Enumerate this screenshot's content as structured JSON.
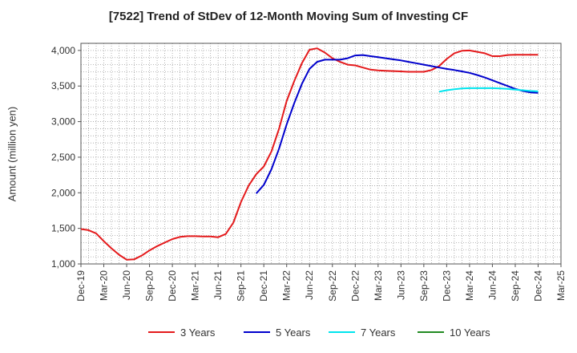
{
  "title": "[7522]  Trend of StDev of 12-Month Moving Sum of Investing CF",
  "chart_data": {
    "type": "line",
    "title": "[7522]  Trend of StDev of 12-Month Moving Sum of Investing CF",
    "ylabel": "Amount (million yen)",
    "xlabel": "",
    "ylim": [
      1000,
      4100
    ],
    "yticks": [
      1000,
      1500,
      2000,
      2500,
      3000,
      3500,
      4000
    ],
    "ytick_labels": [
      "1,000",
      "1,500",
      "2,000",
      "2,500",
      "3,000",
      "3,500",
      "4,000"
    ],
    "x_range": [
      "Dec-19",
      "Mar-25"
    ],
    "xtick_labels": [
      "Dec-19",
      "Mar-20",
      "Jun-20",
      "Sep-20",
      "Dec-20",
      "Mar-21",
      "Jun-21",
      "Sep-21",
      "Dec-21",
      "Mar-22",
      "Jun-22",
      "Sep-22",
      "Dec-22",
      "Mar-23",
      "Jun-23",
      "Sep-23",
      "Dec-23",
      "Mar-24",
      "Jun-24",
      "Sep-24",
      "Dec-24",
      "Mar-25"
    ],
    "grid": true,
    "legend_position": "bottom",
    "series": [
      {
        "name": "3 Years",
        "color": "#e41a1c",
        "points": [
          [
            "Dec-19",
            1490
          ],
          [
            "Jan-20",
            1475
          ],
          [
            "Feb-20",
            1430
          ],
          [
            "Mar-20",
            1320
          ],
          [
            "Apr-20",
            1220
          ],
          [
            "May-20",
            1130
          ],
          [
            "Jun-20",
            1060
          ],
          [
            "Jul-20",
            1065
          ],
          [
            "Aug-20",
            1120
          ],
          [
            "Sep-20",
            1190
          ],
          [
            "Oct-20",
            1250
          ],
          [
            "Nov-20",
            1300
          ],
          [
            "Dec-20",
            1350
          ],
          [
            "Jan-21",
            1380
          ],
          [
            "Feb-21",
            1390
          ],
          [
            "Mar-21",
            1390
          ],
          [
            "Apr-21",
            1385
          ],
          [
            "May-21",
            1385
          ],
          [
            "Jun-21",
            1375
          ],
          [
            "Jul-21",
            1420
          ],
          [
            "Aug-21",
            1580
          ],
          [
            "Sep-21",
            1870
          ],
          [
            "Oct-21",
            2100
          ],
          [
            "Nov-21",
            2260
          ],
          [
            "Dec-21",
            2370
          ],
          [
            "Jan-22",
            2580
          ],
          [
            "Feb-22",
            2900
          ],
          [
            "Mar-22",
            3290
          ],
          [
            "Apr-22",
            3570
          ],
          [
            "May-22",
            3820
          ],
          [
            "Jun-22",
            4010
          ],
          [
            "Jul-22",
            4030
          ],
          [
            "Aug-22",
            3970
          ],
          [
            "Sep-22",
            3890
          ],
          [
            "Oct-22",
            3840
          ],
          [
            "Nov-22",
            3800
          ],
          [
            "Dec-22",
            3790
          ],
          [
            "Jan-23",
            3760
          ],
          [
            "Feb-23",
            3730
          ],
          [
            "Mar-23",
            3720
          ],
          [
            "Apr-23",
            3715
          ],
          [
            "May-23",
            3710
          ],
          [
            "Jun-23",
            3705
          ],
          [
            "Jul-23",
            3700
          ],
          [
            "Aug-23",
            3700
          ],
          [
            "Sep-23",
            3700
          ],
          [
            "Oct-23",
            3725
          ],
          [
            "Nov-23",
            3780
          ],
          [
            "Dec-23",
            3880
          ],
          [
            "Jan-24",
            3960
          ],
          [
            "Feb-24",
            3995
          ],
          [
            "Mar-24",
            4000
          ],
          [
            "Apr-24",
            3980
          ],
          [
            "May-24",
            3960
          ],
          [
            "Jun-24",
            3920
          ],
          [
            "Jul-24",
            3920
          ],
          [
            "Aug-24",
            3935
          ],
          [
            "Sep-24",
            3940
          ],
          [
            "Oct-24",
            3940
          ],
          [
            "Nov-24",
            3940
          ],
          [
            "Dec-24",
            3940
          ]
        ]
      },
      {
        "name": "5 Years",
        "color": "#0000cc",
        "points": [
          [
            "Nov-21",
            1990
          ],
          [
            "Dec-21",
            2110
          ],
          [
            "Jan-22",
            2330
          ],
          [
            "Feb-22",
            2620
          ],
          [
            "Mar-22",
            2960
          ],
          [
            "Apr-22",
            3260
          ],
          [
            "May-22",
            3530
          ],
          [
            "Jun-22",
            3740
          ],
          [
            "Jul-22",
            3840
          ],
          [
            "Aug-22",
            3870
          ],
          [
            "Sep-22",
            3870
          ],
          [
            "Oct-22",
            3870
          ],
          [
            "Nov-22",
            3890
          ],
          [
            "Dec-22",
            3930
          ],
          [
            "Jan-23",
            3935
          ],
          [
            "Feb-23",
            3920
          ],
          [
            "Mar-23",
            3905
          ],
          [
            "Apr-23",
            3890
          ],
          [
            "May-23",
            3875
          ],
          [
            "Jun-23",
            3860
          ],
          [
            "Jul-23",
            3840
          ],
          [
            "Aug-23",
            3820
          ],
          [
            "Sep-23",
            3800
          ],
          [
            "Oct-23",
            3780
          ],
          [
            "Nov-23",
            3760
          ],
          [
            "Dec-23",
            3740
          ],
          [
            "Jan-24",
            3725
          ],
          [
            "Feb-24",
            3705
          ],
          [
            "Mar-24",
            3685
          ],
          [
            "Apr-24",
            3655
          ],
          [
            "May-24",
            3620
          ],
          [
            "Jun-24",
            3580
          ],
          [
            "Jul-24",
            3540
          ],
          [
            "Aug-24",
            3500
          ],
          [
            "Sep-24",
            3460
          ],
          [
            "Oct-24",
            3430
          ],
          [
            "Nov-24",
            3410
          ],
          [
            "Dec-24",
            3405
          ]
        ]
      },
      {
        "name": "7 Years",
        "color": "#00e5ee",
        "points": [
          [
            "Nov-23",
            3420
          ],
          [
            "Dec-23",
            3440
          ],
          [
            "Jan-24",
            3455
          ],
          [
            "Feb-24",
            3465
          ],
          [
            "Mar-24",
            3470
          ],
          [
            "Apr-24",
            3470
          ],
          [
            "May-24",
            3470
          ],
          [
            "Jun-24",
            3470
          ],
          [
            "Jul-24",
            3465
          ],
          [
            "Aug-24",
            3460
          ],
          [
            "Sep-24",
            3450
          ],
          [
            "Oct-24",
            3440
          ],
          [
            "Nov-24",
            3430
          ],
          [
            "Dec-24",
            3425
          ]
        ]
      },
      {
        "name": "10 Years",
        "color": "#228b22",
        "points": []
      }
    ]
  }
}
